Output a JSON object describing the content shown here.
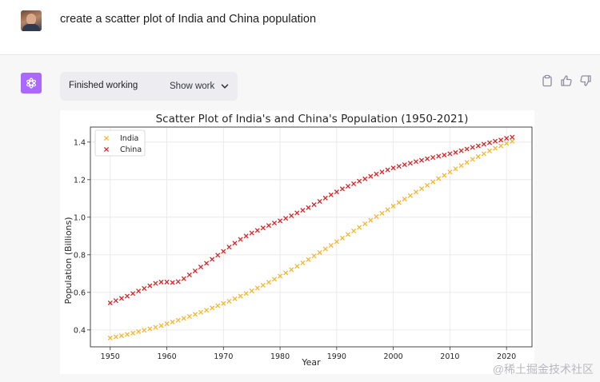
{
  "user": {
    "prompt": "create a scatter plot of India and China population"
  },
  "assistant": {
    "status": "Finished working",
    "show_work_label": "Show work"
  },
  "watermark": "@稀土掘金技术社区",
  "chart_data": {
    "type": "scatter",
    "title": "Scatter Plot of India's and China's Population (1950-2021)",
    "xlabel": "Year",
    "ylabel": "Population (Billions)",
    "xlim": [
      1946.5,
      2024.5
    ],
    "ylim": [
      0.31,
      1.48
    ],
    "xticks": [
      1950,
      1960,
      1970,
      1980,
      1990,
      2000,
      2010,
      2020
    ],
    "yticks": [
      0.4,
      0.6,
      0.8,
      1.0,
      1.2,
      1.4
    ],
    "grid": true,
    "legend_position": "top-left",
    "marker": "x",
    "x": [
      1950,
      1951,
      1952,
      1953,
      1954,
      1955,
      1956,
      1957,
      1958,
      1959,
      1960,
      1961,
      1962,
      1963,
      1964,
      1965,
      1966,
      1967,
      1968,
      1969,
      1970,
      1971,
      1972,
      1973,
      1974,
      1975,
      1976,
      1977,
      1978,
      1979,
      1980,
      1981,
      1982,
      1983,
      1984,
      1985,
      1986,
      1987,
      1988,
      1989,
      1990,
      1991,
      1992,
      1993,
      1994,
      1995,
      1996,
      1997,
      1998,
      1999,
      2000,
      2001,
      2002,
      2003,
      2004,
      2005,
      2006,
      2007,
      2008,
      2009,
      2010,
      2011,
      2012,
      2013,
      2014,
      2015,
      2016,
      2017,
      2018,
      2019,
      2020,
      2021
    ],
    "series": [
      {
        "name": "India",
        "color": "#f5b731",
        "values": [
          0.357,
          0.363,
          0.369,
          0.376,
          0.383,
          0.391,
          0.398,
          0.406,
          0.414,
          0.423,
          0.433,
          0.442,
          0.452,
          0.462,
          0.472,
          0.483,
          0.494,
          0.505,
          0.517,
          0.529,
          0.541,
          0.553,
          0.566,
          0.58,
          0.594,
          0.608,
          0.623,
          0.638,
          0.654,
          0.67,
          0.687,
          0.704,
          0.721,
          0.739,
          0.757,
          0.775,
          0.794,
          0.812,
          0.831,
          0.85,
          0.87,
          0.889,
          0.908,
          0.927,
          0.946,
          0.965,
          0.984,
          1.003,
          1.021,
          1.04,
          1.059,
          1.078,
          1.097,
          1.115,
          1.134,
          1.152,
          1.17,
          1.188,
          1.206,
          1.223,
          1.241,
          1.258,
          1.275,
          1.292,
          1.308,
          1.323,
          1.338,
          1.353,
          1.367,
          1.38,
          1.393,
          1.404
        ]
      },
      {
        "name": "China",
        "color": "#d62728",
        "values": [
          0.544,
          0.556,
          0.568,
          0.58,
          0.594,
          0.607,
          0.621,
          0.635,
          0.648,
          0.655,
          0.655,
          0.652,
          0.657,
          0.673,
          0.693,
          0.714,
          0.735,
          0.755,
          0.776,
          0.798,
          0.818,
          0.841,
          0.862,
          0.882,
          0.9,
          0.916,
          0.93,
          0.943,
          0.956,
          0.969,
          0.981,
          0.994,
          1.008,
          1.023,
          1.037,
          1.051,
          1.067,
          1.084,
          1.102,
          1.119,
          1.135,
          1.151,
          1.165,
          1.178,
          1.192,
          1.204,
          1.218,
          1.23,
          1.241,
          1.252,
          1.262,
          1.271,
          1.28,
          1.288,
          1.296,
          1.303,
          1.311,
          1.318,
          1.325,
          1.331,
          1.338,
          1.345,
          1.354,
          1.363,
          1.372,
          1.38,
          1.389,
          1.397,
          1.405,
          1.411,
          1.42,
          1.426
        ]
      }
    ]
  }
}
